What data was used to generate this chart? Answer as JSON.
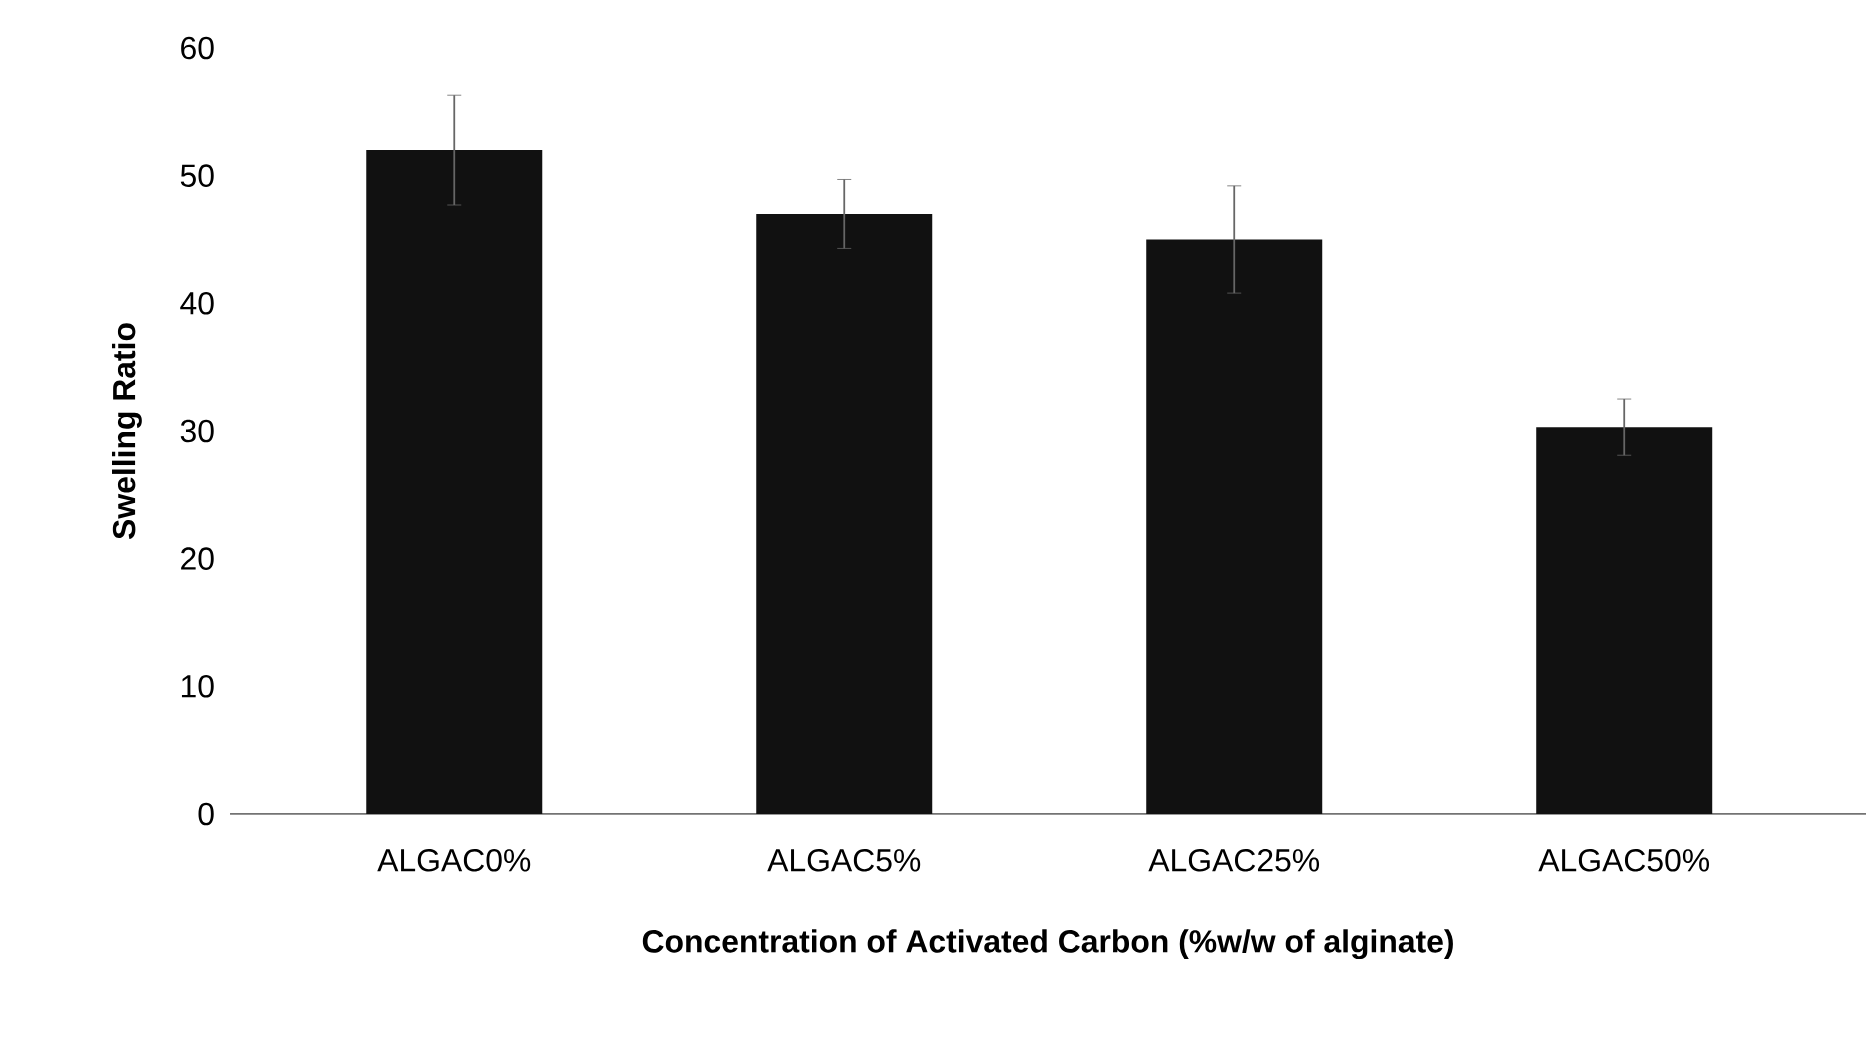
{
  "chart_data": {
    "type": "bar",
    "xlabel": "Concentration of Activated Carbon (%w/w of alginate)",
    "ylabel": "Swelling Ratio",
    "categories": [
      "ALGAC0%",
      "ALGAC5%",
      "ALGAC25%",
      "ALGAC50%"
    ],
    "values": [
      52,
      47,
      45,
      30.3
    ],
    "errors": [
      4.3,
      2.7,
      4.2,
      2.2
    ],
    "color": "#111111",
    "ylim": [
      0,
      60
    ],
    "yticks": [
      0,
      10,
      20,
      30,
      40,
      50,
      60
    ],
    "grid": false
  }
}
